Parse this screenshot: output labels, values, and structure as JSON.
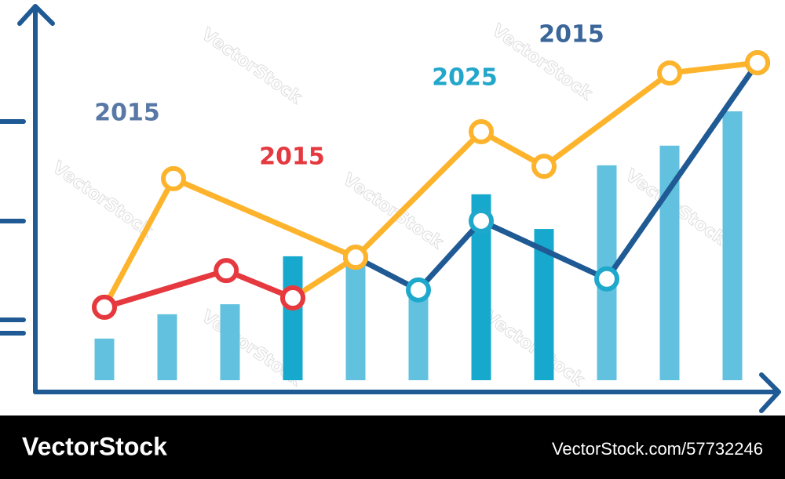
{
  "chart_data": {
    "type": "bar_line",
    "categories": [
      null,
      null,
      null,
      null,
      null,
      null,
      null,
      null,
      null,
      null,
      null
    ],
    "values": [
      12.5,
      19.8,
      22.8,
      37.2,
      35.3,
      25.9,
      55.8,
      45.4,
      64.5,
      70.4,
      80.7
    ],
    "colors": [
      "#62c1df",
      "#62c1df",
      "#62c1df",
      "#17a9cd",
      "#62c1df",
      "#62c1df",
      "#17a9cd",
      "#17a9cd",
      "#62c1df",
      "#62c1df",
      "#62c1df"
    ],
    "ylim": [
      0,
      100
    ],
    "xlim": [
      -0.5,
      10.5
    ],
    "series": [
      {
        "color": "#1f5a94",
        "marker_color": "#1ea8cc",
        "x": [
          4,
          5,
          6,
          8,
          10.4
        ],
        "values": [
          36.9,
          27.1,
          47.8,
          30.4,
          95.3
        ]
      },
      {
        "color": "#fdb42c",
        "marker_color": "#fdb42c",
        "x": [
          0,
          1.1,
          4,
          null,
          3,
          4,
          6,
          7,
          9,
          10.4
        ],
        "values": [
          21.9,
          60.5,
          36.9,
          null,
          24.7,
          36.9,
          74.6,
          64.2,
          92.2,
          95.3
        ]
      },
      {
        "color": "#e5393f",
        "marker_color": "#e5393f",
        "x": [
          0,
          1.94,
          3
        ],
        "values": [
          21.9,
          32.9,
          24.7
        ]
      }
    ],
    "annotations": [
      {
        "text": "2015",
        "color": "#5878a5"
      },
      {
        "text": "2015",
        "color": "#e5393f"
      },
      {
        "text": "2025",
        "color": "#22a7cb"
      },
      {
        "text": "2015",
        "color": "#3a6699"
      }
    ]
  },
  "watermark": "VectorStock",
  "footer": {
    "brand": "VectorStock",
    "id": "VectorStock.com/57732246"
  }
}
